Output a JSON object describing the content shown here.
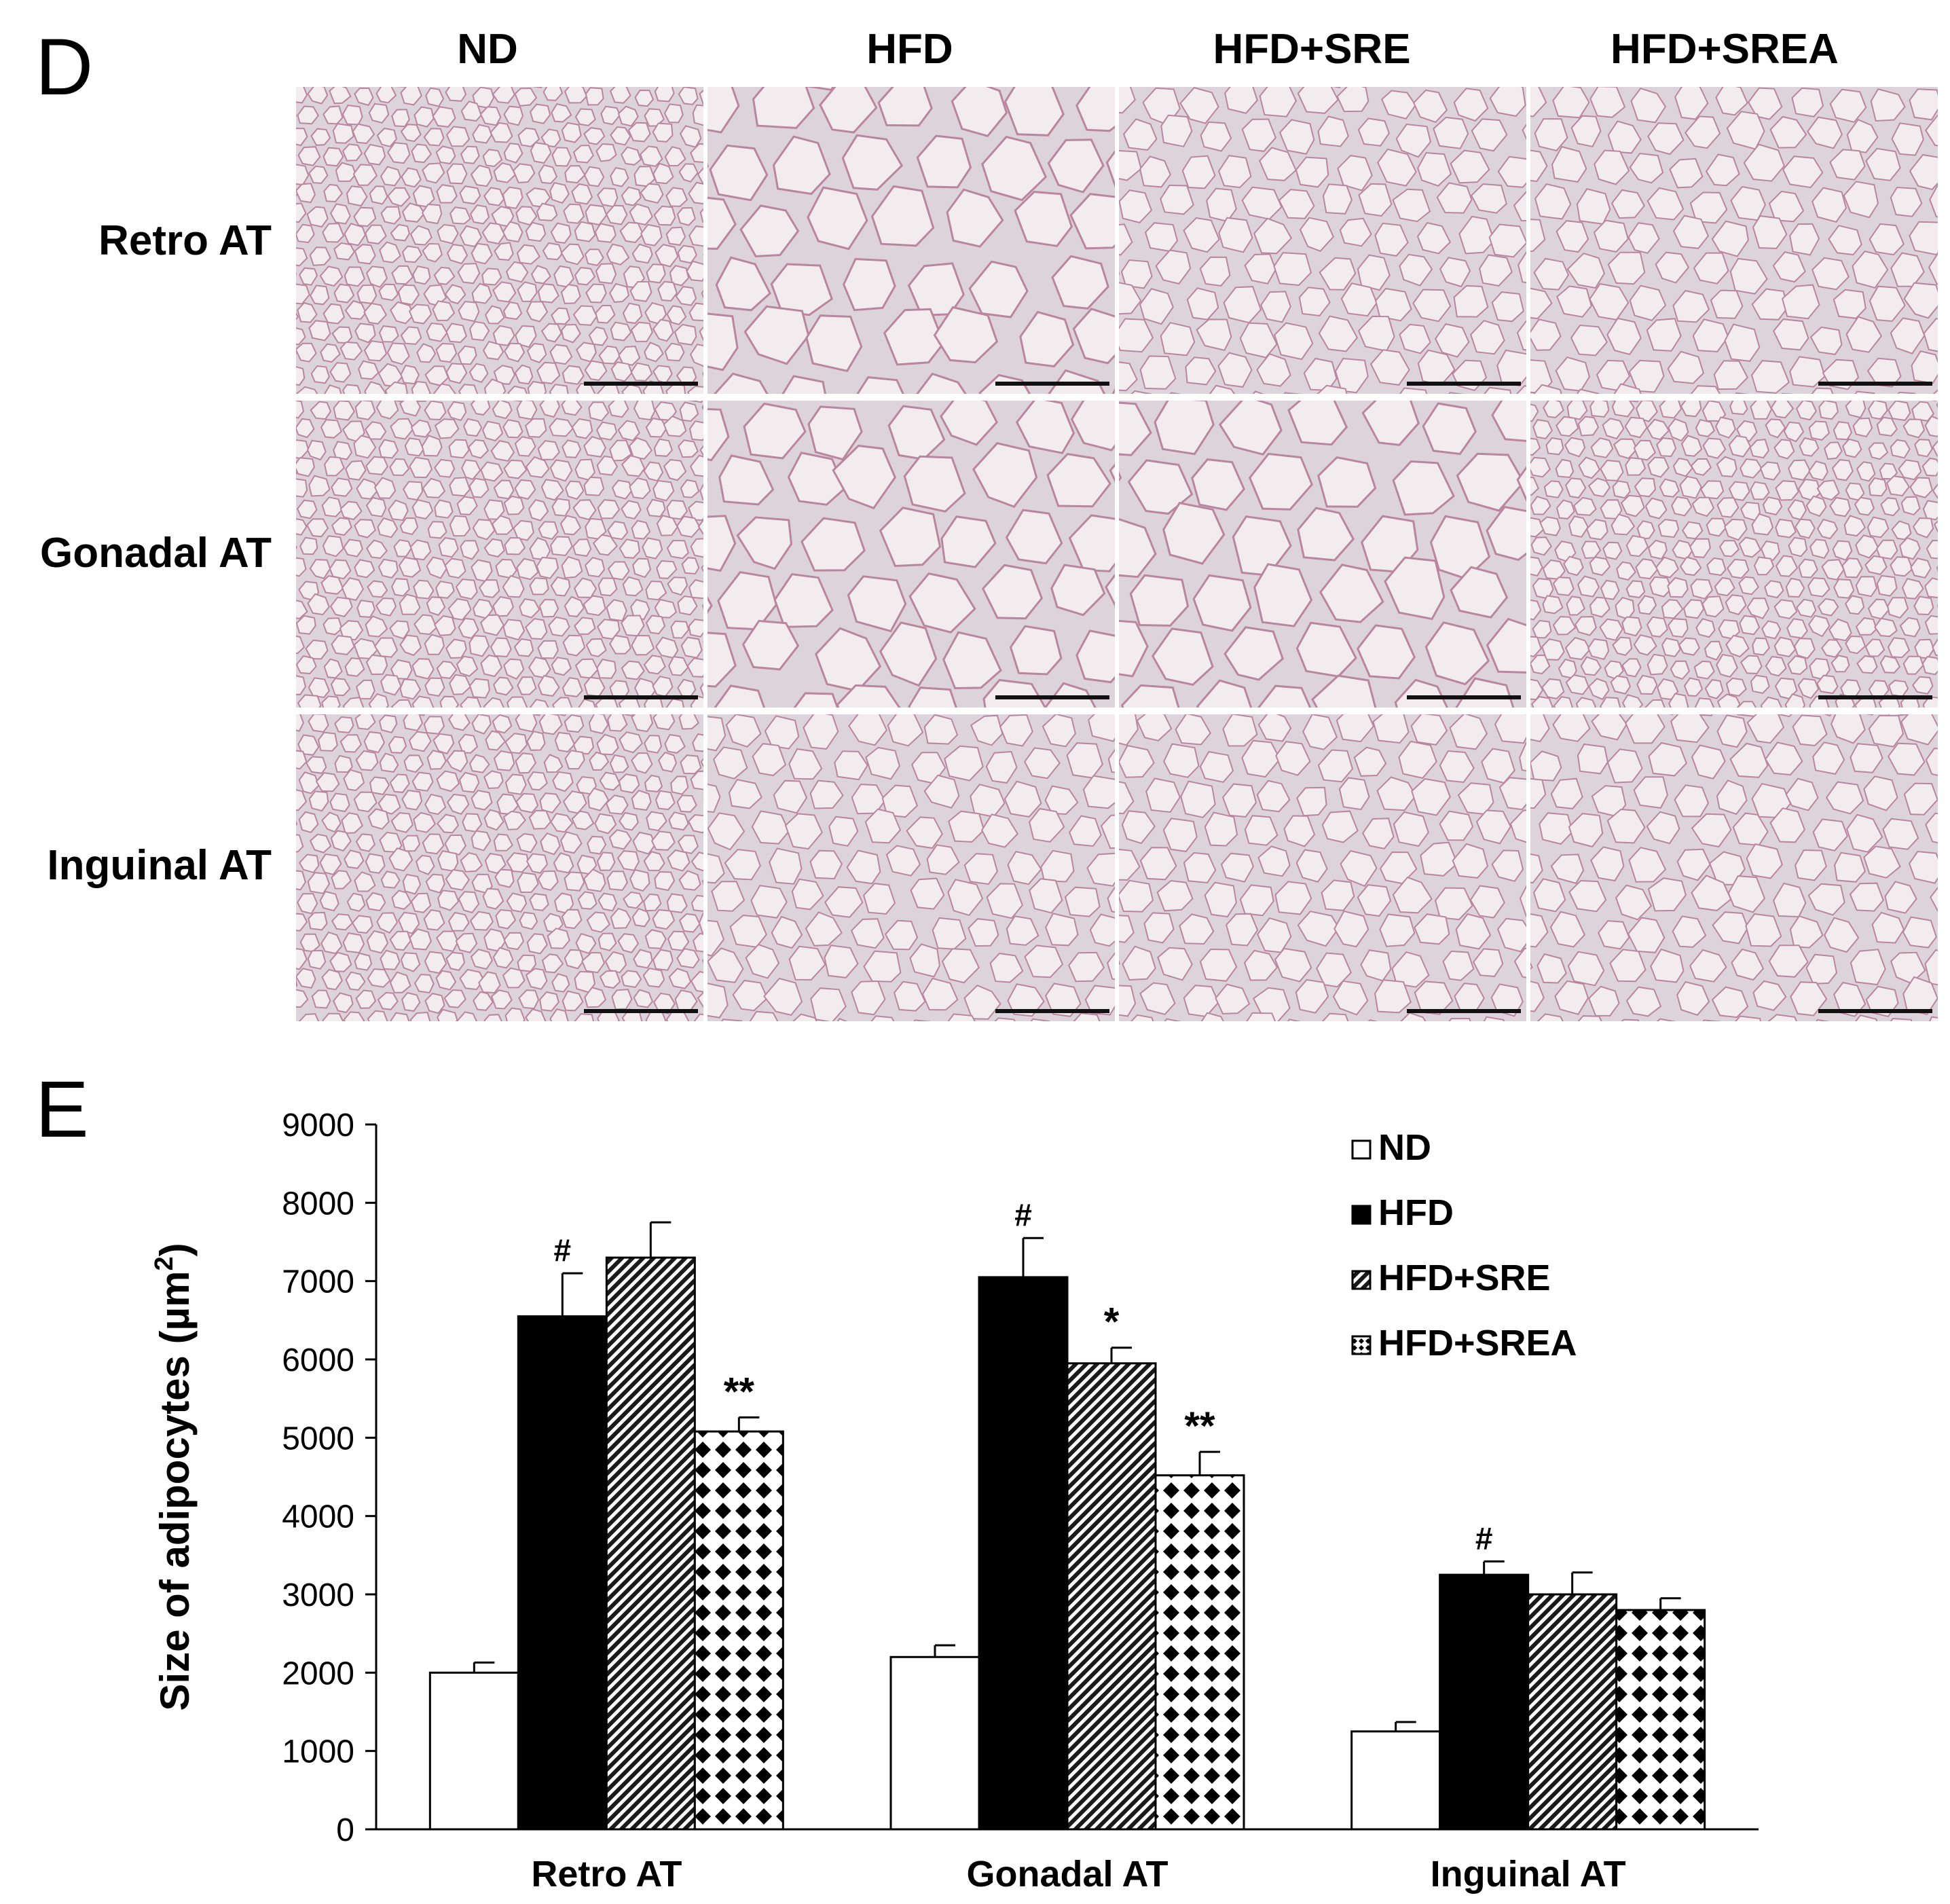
{
  "panel_d": {
    "letter": "D",
    "columns": [
      "ND",
      "HFD",
      "HFD+SRE",
      "HFD+SREA"
    ],
    "rows": [
      "Retro AT",
      "Gonadal AT",
      "Inguinal AT"
    ],
    "cell_scale": [
      [
        "small",
        "large",
        "medium",
        "medium"
      ],
      [
        "small",
        "large",
        "large",
        "small"
      ],
      [
        "small",
        "medium",
        "medium",
        "medium"
      ]
    ]
  },
  "panel_e": {
    "letter": "E"
  },
  "chart_data": {
    "type": "bar",
    "categories": [
      "Retro AT",
      "Gonadal AT",
      "Inguinal AT"
    ],
    "ylabel": "Size of adipocytes (µm",
    "ylabel_sup": "2",
    "ylabel_close": ")",
    "ylim": [
      0,
      9000
    ],
    "yticks": [
      0,
      1000,
      2000,
      3000,
      4000,
      5000,
      6000,
      7000,
      8000,
      9000
    ],
    "grid": false,
    "legend_position": "top-right",
    "series": [
      {
        "name": "ND",
        "pattern": "white",
        "values": [
          2000,
          2200,
          1250
        ],
        "errors": [
          130,
          150,
          120
        ],
        "annotations": [
          "",
          "",
          ""
        ]
      },
      {
        "name": "HFD",
        "pattern": "black",
        "values": [
          6550,
          7050,
          3250
        ],
        "errors": [
          550,
          500,
          170
        ],
        "annotations": [
          "#",
          "#",
          "#"
        ]
      },
      {
        "name": "HFD+SRE",
        "pattern": "diagonal",
        "values": [
          7300,
          5950,
          3000
        ],
        "errors": [
          450,
          200,
          280
        ],
        "annotations": [
          "",
          "*",
          ""
        ]
      },
      {
        "name": "HFD+SREA",
        "pattern": "dots",
        "values": [
          5080,
          4520,
          2800
        ],
        "errors": [
          180,
          300,
          150
        ],
        "annotations": [
          "**",
          "**",
          ""
        ]
      }
    ]
  }
}
